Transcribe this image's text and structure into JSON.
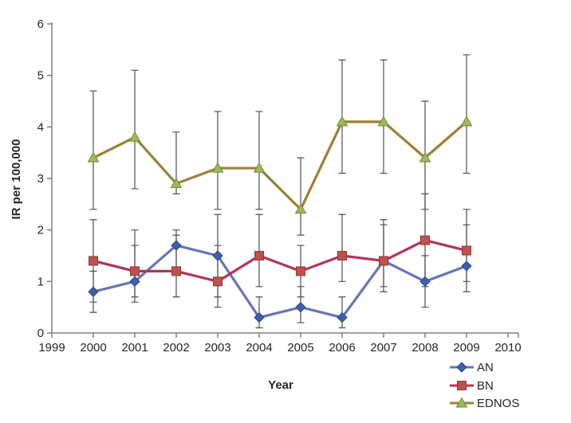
{
  "chart_data": {
    "type": "line",
    "title": "",
    "xlabel": "Year",
    "ylabel": "IR per 100,000",
    "x": [
      2000,
      2001,
      2002,
      2003,
      2004,
      2005,
      2006,
      2007,
      2008,
      2009
    ],
    "x_ticks": [
      1999,
      2000,
      2001,
      2002,
      2003,
      2004,
      2005,
      2006,
      2007,
      2008,
      2009,
      2010
    ],
    "y_ticks": [
      0,
      1,
      2,
      3,
      4,
      5,
      6
    ],
    "xlim": [
      1999,
      2010
    ],
    "ylim": [
      0,
      6
    ],
    "grid": false,
    "error_bars": true,
    "legend_position": "bottom-right",
    "series": [
      {
        "name": "AN",
        "marker": "diamond",
        "line_color": "#6674b8",
        "marker_fill": "#3c5fae",
        "marker_edge": "#2c4884",
        "values": [
          0.8,
          1.0,
          1.7,
          1.5,
          0.3,
          0.5,
          0.3,
          1.4,
          1.0,
          1.3
        ],
        "ci_low": [
          0.4,
          0.6,
          1.2,
          0.7,
          0.1,
          0.2,
          0.1,
          0.8,
          0.5,
          0.8
        ],
        "ci_high": [
          1.2,
          1.7,
          2.0,
          2.3,
          0.7,
          0.9,
          0.7,
          2.1,
          1.5,
          2.1
        ]
      },
      {
        "name": "BN",
        "marker": "square",
        "line_color": "#b13458",
        "marker_fill": "#c0504d",
        "marker_edge": "#8e3a38",
        "values": [
          1.4,
          1.2,
          1.2,
          1.0,
          1.5,
          1.2,
          1.5,
          1.4,
          1.8,
          1.6
        ],
        "ci_low": [
          0.6,
          0.7,
          0.7,
          0.5,
          0.9,
          0.7,
          1.0,
          0.9,
          0.9,
          1.0
        ],
        "ci_high": [
          2.2,
          2.0,
          1.9,
          1.7,
          2.3,
          1.7,
          2.3,
          2.2,
          2.7,
          2.4
        ]
      },
      {
        "name": "EDNOS",
        "marker": "triangle",
        "line_color": "#9d8037",
        "marker_fill": "#9bbb59",
        "marker_edge": "#748a3a",
        "values": [
          3.4,
          3.8,
          2.9,
          3.2,
          3.2,
          2.4,
          4.1,
          4.1,
          3.4,
          4.1
        ],
        "ci_low": [
          2.4,
          2.8,
          2.7,
          2.4,
          2.4,
          1.9,
          3.1,
          3.1,
          2.4,
          3.1
        ],
        "ci_high": [
          4.7,
          5.1,
          3.9,
          4.3,
          4.3,
          3.4,
          5.3,
          5.3,
          4.5,
          5.4
        ]
      }
    ],
    "error_bar_color": "#4f4f4f",
    "axis_color": "#808080",
    "text_color": "#262626"
  }
}
